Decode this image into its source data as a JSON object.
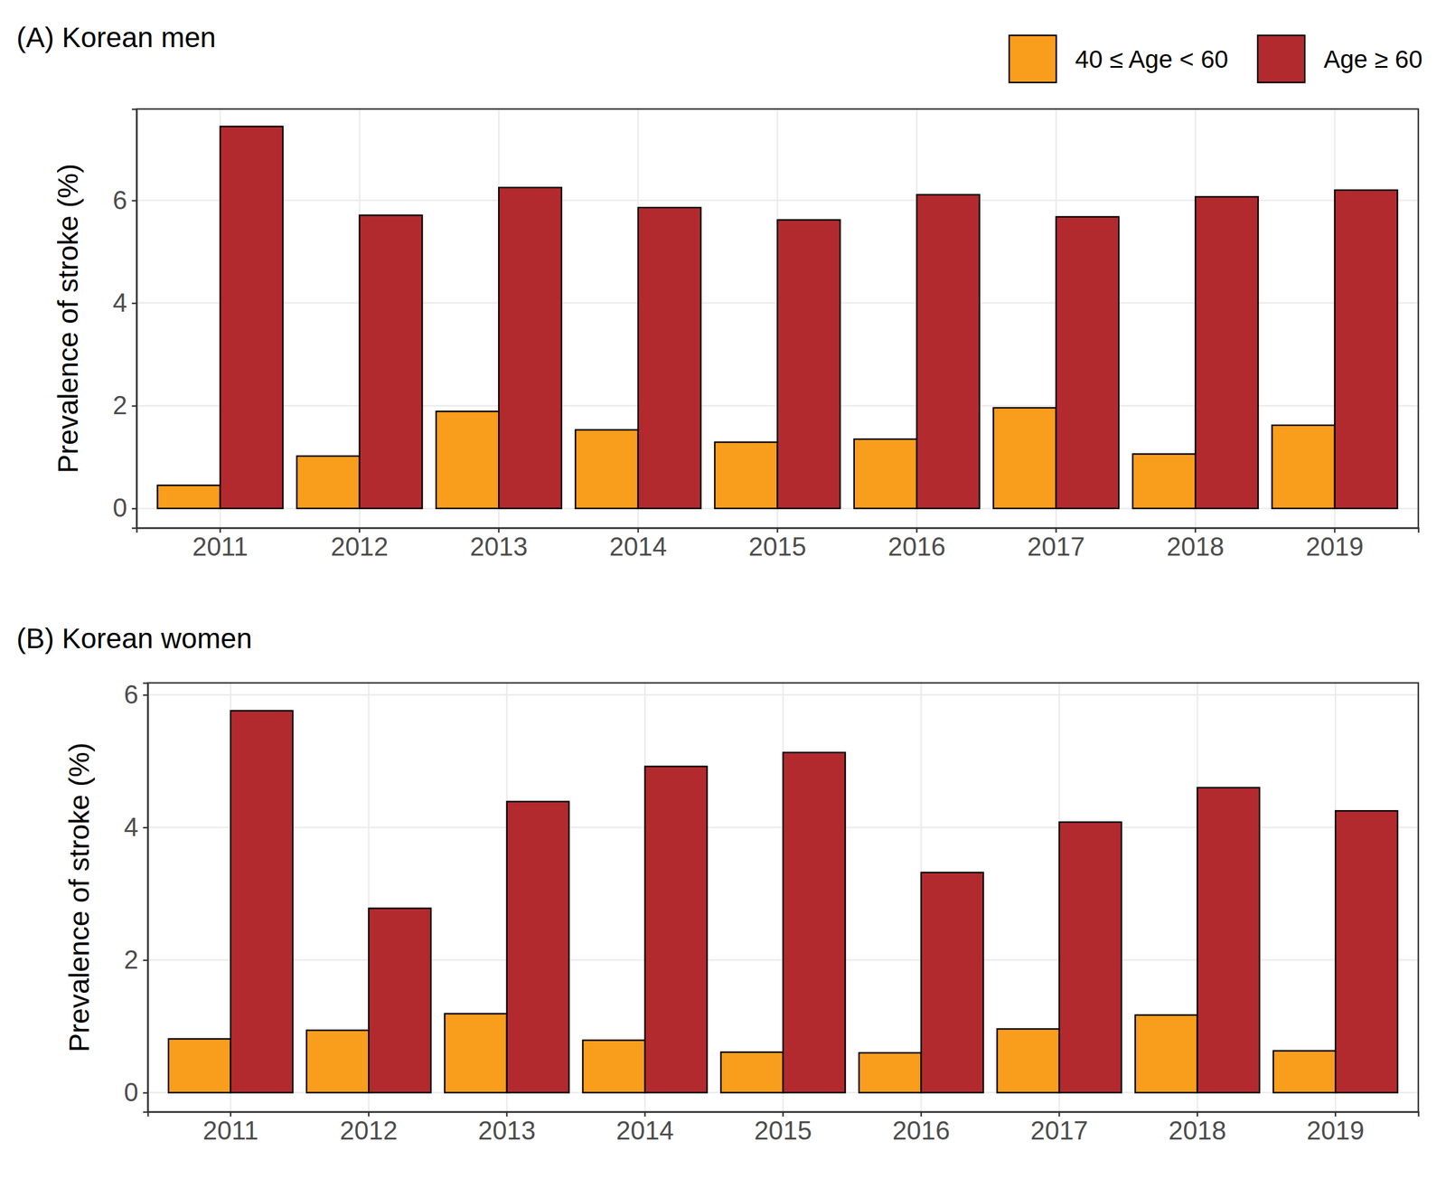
{
  "chart_data": [
    {
      "type": "bar",
      "title": "(A) Korean men",
      "ylabel": "Prevalence of stroke (%)",
      "categories": [
        "2011",
        "2012",
        "2013",
        "2014",
        "2015",
        "2016",
        "2017",
        "2018",
        "2019"
      ],
      "series": [
        {
          "name": "40 ≤ Age < 60",
          "color": "#f99d1c",
          "values": [
            0.45,
            1.02,
            1.89,
            1.53,
            1.29,
            1.35,
            1.96,
            1.06,
            1.62
          ]
        },
        {
          "name": "Age ≥ 60",
          "color": "#b22a2e",
          "values": [
            7.44,
            5.71,
            6.25,
            5.86,
            5.62,
            6.11,
            5.68,
            6.07,
            6.2
          ]
        }
      ],
      "ylim": [
        -0.38,
        7.78
      ],
      "yticks": [
        0,
        2,
        4,
        6
      ],
      "grid": true,
      "legend": "top right"
    },
    {
      "type": "bar",
      "title": "(B) Korean women",
      "ylabel": "Prevalence of stroke (%)",
      "categories": [
        "2011",
        "2012",
        "2013",
        "2014",
        "2015",
        "2016",
        "2017",
        "2018",
        "2019"
      ],
      "series": [
        {
          "color": "#f99d1c",
          "values": [
            0.81,
            0.94,
            1.19,
            0.79,
            0.61,
            0.6,
            0.96,
            1.17,
            0.63
          ]
        },
        {
          "color": "#b22a2e",
          "values": [
            5.76,
            2.78,
            4.39,
            4.92,
            5.13,
            3.32,
            4.08,
            4.6,
            4.25
          ]
        }
      ],
      "ylim": [
        -0.29,
        6.18
      ],
      "yticks": [
        0,
        2,
        4,
        6
      ],
      "grid": true
    }
  ]
}
